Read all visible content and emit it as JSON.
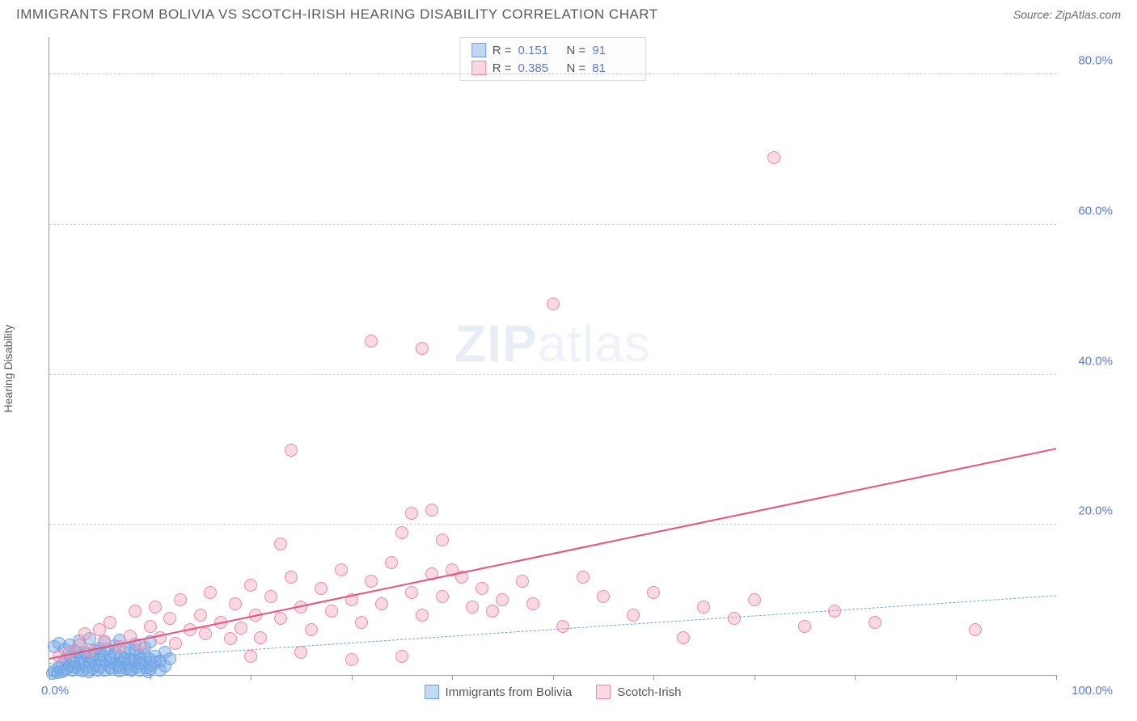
{
  "title": "IMMIGRANTS FROM BOLIVIA VS SCOTCH-IRISH HEARING DISABILITY CORRELATION CHART",
  "source": "Source: ZipAtlas.com",
  "ylabel": "Hearing Disability",
  "watermark_bold": "ZIP",
  "watermark_light": "atlas",
  "chart": {
    "type": "scatter",
    "background_color": "#ffffff",
    "grid_color": "#cccccc",
    "axis_color": "#999999",
    "tick_label_color": "#5b7bd5",
    "xlim": [
      0,
      100
    ],
    "ylim": [
      0,
      85
    ],
    "y_gridlines": [
      20,
      40,
      60,
      80
    ],
    "y_tick_labels": [
      "20.0%",
      "40.0%",
      "60.0%",
      "80.0%"
    ],
    "x_ticks": [
      0,
      10,
      20,
      30,
      40,
      50,
      60,
      70,
      80,
      90,
      100
    ],
    "x_min_label": "0.0%",
    "x_max_label": "100.0%",
    "marker_radius": 8,
    "marker_opacity": 0.45,
    "series": [
      {
        "name": "Immigrants from Bolivia",
        "color_fill": "rgba(120,170,235,0.45)",
        "color_stroke": "#6fa3e0",
        "trend": {
          "dashed": true,
          "color": "#6fa3e0",
          "width": 1.5,
          "y_at_x0": 1.5,
          "y_at_x100": 10.5
        },
        "R": "0.151",
        "N": "91",
        "points": [
          [
            0.3,
            0.2
          ],
          [
            0.5,
            0.5
          ],
          [
            0.8,
            0.3
          ],
          [
            1.0,
            1.0
          ],
          [
            1.2,
            0.4
          ],
          [
            1.3,
            1.5
          ],
          [
            1.5,
            0.7
          ],
          [
            1.6,
            2.0
          ],
          [
            1.8,
            0.9
          ],
          [
            2.0,
            1.2
          ],
          [
            2.1,
            2.5
          ],
          [
            2.3,
            0.6
          ],
          [
            2.4,
            1.8
          ],
          [
            2.6,
            1.1
          ],
          [
            2.7,
            3.0
          ],
          [
            2.9,
            0.8
          ],
          [
            3.0,
            1.4
          ],
          [
            3.1,
            2.2
          ],
          [
            3.3,
            0.5
          ],
          [
            3.4,
            1.7
          ],
          [
            3.6,
            2.8
          ],
          [
            3.7,
            1.0
          ],
          [
            3.9,
            0.4
          ],
          [
            4.0,
            1.6
          ],
          [
            4.2,
            2.3
          ],
          [
            4.3,
            0.9
          ],
          [
            4.5,
            3.2
          ],
          [
            4.6,
            1.3
          ],
          [
            4.8,
            0.7
          ],
          [
            5.0,
            2.0
          ],
          [
            5.1,
            1.1
          ],
          [
            5.3,
            2.6
          ],
          [
            5.5,
            0.6
          ],
          [
            5.6,
            1.8
          ],
          [
            5.8,
            3.5
          ],
          [
            6.0,
            1.0
          ],
          [
            6.1,
            2.2
          ],
          [
            6.3,
            0.8
          ],
          [
            6.5,
            1.5
          ],
          [
            6.6,
            2.9
          ],
          [
            6.8,
            1.2
          ],
          [
            7.0,
            0.5
          ],
          [
            7.1,
            2.4
          ],
          [
            7.3,
            1.7
          ],
          [
            7.5,
            3.0
          ],
          [
            7.6,
            0.9
          ],
          [
            7.8,
            1.4
          ],
          [
            8.0,
            2.1
          ],
          [
            8.2,
            0.7
          ],
          [
            8.4,
            1.9
          ],
          [
            8.5,
            3.3
          ],
          [
            8.7,
            1.1
          ],
          [
            8.9,
            2.5
          ],
          [
            9.0,
            0.6
          ],
          [
            9.2,
            1.6
          ],
          [
            9.4,
            2.8
          ],
          [
            9.6,
            1.0
          ],
          [
            9.8,
            0.4
          ],
          [
            10.0,
            2.0
          ],
          [
            10.2,
            1.3
          ],
          [
            0.5,
            3.8
          ],
          [
            1.0,
            4.2
          ],
          [
            1.5,
            3.5
          ],
          [
            2.0,
            4.0
          ],
          [
            2.5,
            3.2
          ],
          [
            3.0,
            4.5
          ],
          [
            3.5,
            3.0
          ],
          [
            4.0,
            4.8
          ],
          [
            4.5,
            2.8
          ],
          [
            5.0,
            3.6
          ],
          [
            5.5,
            4.3
          ],
          [
            6.0,
            2.5
          ],
          [
            6.5,
            3.9
          ],
          [
            7.0,
            4.6
          ],
          [
            7.5,
            2.2
          ],
          [
            8.0,
            3.4
          ],
          [
            8.5,
            4.1
          ],
          [
            9.0,
            2.0
          ],
          [
            9.5,
            3.7
          ],
          [
            10.0,
            4.4
          ],
          [
            10.5,
            2.5
          ],
          [
            11.0,
            1.8
          ],
          [
            11.5,
            3.0
          ],
          [
            12.0,
            2.2
          ],
          [
            7.0,
            1.0
          ],
          [
            8.0,
            0.8
          ],
          [
            9.0,
            1.5
          ],
          [
            10.0,
            0.9
          ],
          [
            10.5,
            1.7
          ],
          [
            11.0,
            0.6
          ],
          [
            11.5,
            1.2
          ]
        ]
      },
      {
        "name": "Scotch-Irish",
        "color_fill": "rgba(245,160,185,0.40)",
        "color_stroke": "#e98aa8",
        "trend": {
          "dashed": false,
          "color": "#e6537c",
          "width": 2.5,
          "y_at_x0": 2.0,
          "y_at_x100": 30.0
        },
        "R": "0.385",
        "N": "81",
        "points": [
          [
            1,
            2.5
          ],
          [
            2,
            3.0
          ],
          [
            3,
            4.0
          ],
          [
            3.5,
            5.5
          ],
          [
            4,
            3.2
          ],
          [
            5,
            6.0
          ],
          [
            5.5,
            4.5
          ],
          [
            6,
            7.0
          ],
          [
            7,
            3.8
          ],
          [
            8,
            5.2
          ],
          [
            8.5,
            8.5
          ],
          [
            9,
            4.0
          ],
          [
            10,
            6.5
          ],
          [
            10.5,
            9.0
          ],
          [
            11,
            5.0
          ],
          [
            12,
            7.5
          ],
          [
            12.5,
            4.2
          ],
          [
            13,
            10.0
          ],
          [
            14,
            6.0
          ],
          [
            15,
            8.0
          ],
          [
            15.5,
            5.5
          ],
          [
            16,
            11.0
          ],
          [
            17,
            7.0
          ],
          [
            18,
            4.8
          ],
          [
            18.5,
            9.5
          ],
          [
            19,
            6.2
          ],
          [
            20,
            12.0
          ],
          [
            20.5,
            8.0
          ],
          [
            21,
            5.0
          ],
          [
            22,
            10.5
          ],
          [
            23,
            7.5
          ],
          [
            23,
            17.5
          ],
          [
            24,
            13.0
          ],
          [
            24,
            30.0
          ],
          [
            25,
            9.0
          ],
          [
            26,
            6.0
          ],
          [
            27,
            11.5
          ],
          [
            28,
            8.5
          ],
          [
            29,
            14.0
          ],
          [
            30,
            10.0
          ],
          [
            31,
            7.0
          ],
          [
            32,
            44.5
          ],
          [
            32,
            12.5
          ],
          [
            33,
            9.5
          ],
          [
            34,
            15.0
          ],
          [
            35,
            19.0
          ],
          [
            36,
            11.0
          ],
          [
            36,
            21.5
          ],
          [
            37,
            43.5
          ],
          [
            37,
            8.0
          ],
          [
            38,
            13.5
          ],
          [
            38,
            22.0
          ],
          [
            39,
            10.5
          ],
          [
            39,
            18.0
          ],
          [
            40,
            14.0
          ],
          [
            41,
            13.0
          ],
          [
            42,
            9.0
          ],
          [
            43,
            11.5
          ],
          [
            44,
            8.5
          ],
          [
            45,
            10.0
          ],
          [
            47,
            12.5
          ],
          [
            48,
            9.5
          ],
          [
            50,
            49.5
          ],
          [
            51,
            6.5
          ],
          [
            53,
            13.0
          ],
          [
            55,
            10.5
          ],
          [
            58,
            8.0
          ],
          [
            60,
            11.0
          ],
          [
            63,
            5.0
          ],
          [
            65,
            9.0
          ],
          [
            68,
            7.5
          ],
          [
            70,
            10.0
          ],
          [
            72,
            69.0
          ],
          [
            75,
            6.5
          ],
          [
            78,
            8.5
          ],
          [
            82,
            7.0
          ],
          [
            92,
            6.0
          ],
          [
            20,
            2.5
          ],
          [
            25,
            3.0
          ],
          [
            30,
            2.0
          ],
          [
            35,
            2.5
          ]
        ]
      }
    ]
  },
  "legend_top": {
    "r_label": "R  =",
    "n_label": "N  ="
  }
}
